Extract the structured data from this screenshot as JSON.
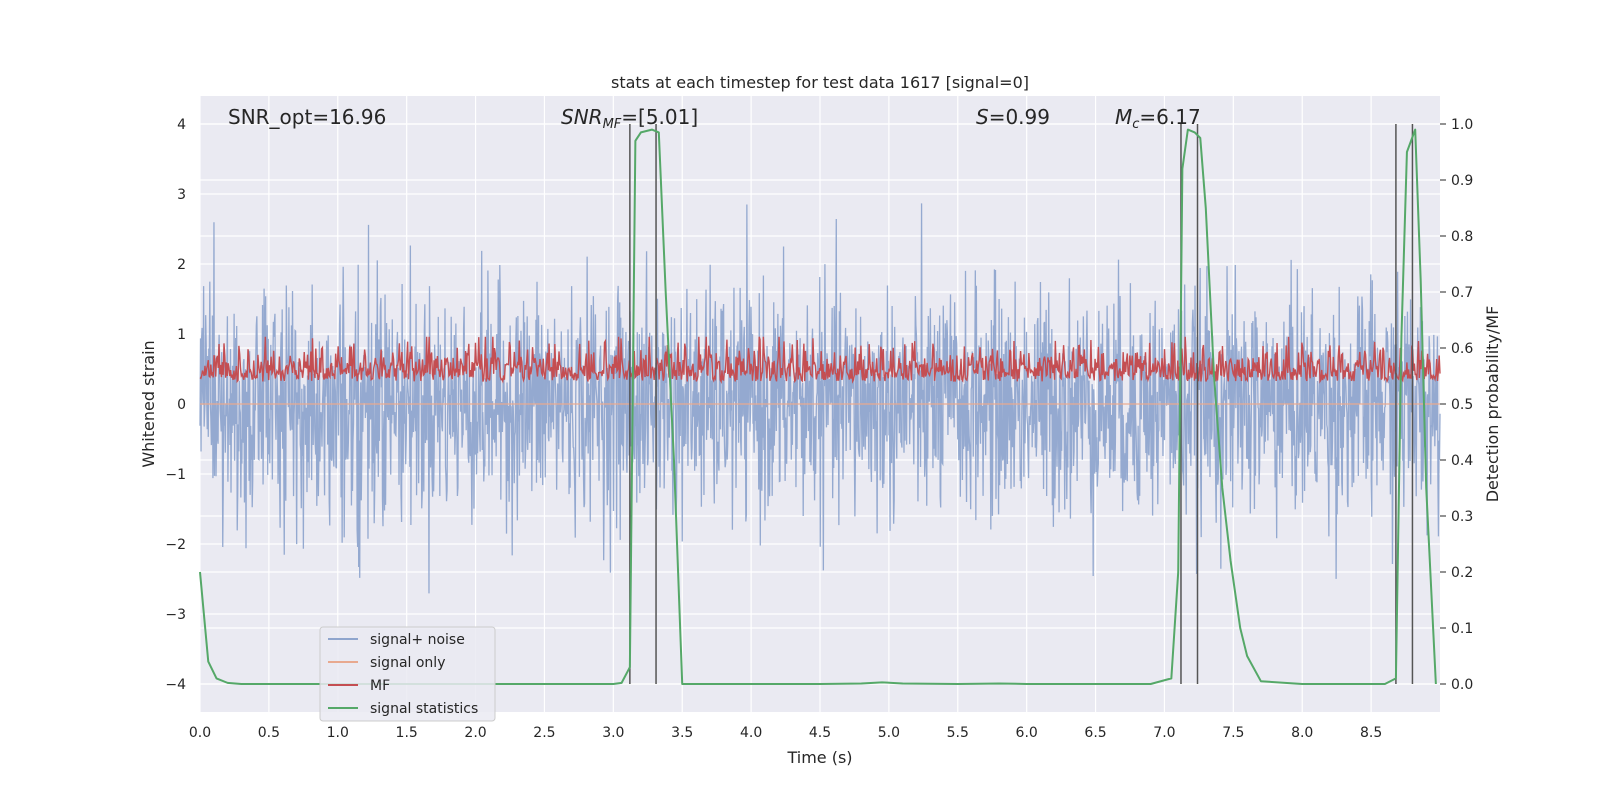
{
  "chart_data": {
    "type": "line",
    "title": "stats at each timestep for test data 1617 [signal=0]",
    "xlabel": "Time (s)",
    "ylabel": "Whitened strain",
    "y2label": "Detection probability/MF",
    "xlim": [
      0.0,
      9.0
    ],
    "ylim": [
      -4.4,
      4.4
    ],
    "y2lim": [
      -0.05,
      1.05
    ],
    "x_ticks": [
      "0.0",
      "0.5",
      "1.0",
      "1.5",
      "2.0",
      "2.5",
      "3.0",
      "3.5",
      "4.0",
      "4.5",
      "5.0",
      "5.5",
      "6.0",
      "6.5",
      "7.0",
      "7.5",
      "8.0",
      "8.5"
    ],
    "y_ticks": [
      "4",
      "3",
      "2",
      "1",
      "0",
      "−1",
      "−2",
      "−3",
      "−4"
    ],
    "y2_ticks": [
      "1.0",
      "0.9",
      "0.8",
      "0.7",
      "0.6",
      "0.5",
      "0.4",
      "0.3",
      "0.2",
      "0.1",
      "0.0"
    ],
    "grid": true,
    "legend_position": "lower-left",
    "annotations": [
      {
        "text": "SNR_opt=16.96"
      },
      {
        "base": "SNR",
        "sub": "MF",
        "rest": "=[5.01]"
      },
      {
        "base": "S",
        "rest": "=0.99"
      },
      {
        "base": "M",
        "sub": "c",
        "rest": "=6.17"
      }
    ],
    "series": [
      {
        "name": "signal+ noise",
        "color": "#8fa5cd",
        "noise_sigma": 0.8,
        "x_range": [
          0.0,
          9.0
        ],
        "axis": "left"
      },
      {
        "name": "signal only",
        "color": "#e8a98f",
        "x": [
          0.0,
          9.0
        ],
        "y": [
          0.0,
          0.0
        ],
        "axis": "left"
      },
      {
        "name": "MF",
        "color": "#c44e52",
        "baseline": 0.55,
        "axis": "right"
      },
      {
        "name": "signal statistics",
        "color": "#55a868",
        "axis": "right",
        "x": [
          0.0,
          0.03,
          0.06,
          0.12,
          0.2,
          0.3,
          0.5,
          1.0,
          1.5,
          2.0,
          2.5,
          3.0,
          3.06,
          3.12,
          3.16,
          3.2,
          3.28,
          3.33,
          3.38,
          3.44,
          3.5,
          3.6,
          4.0,
          4.5,
          4.8,
          4.95,
          5.1,
          5.5,
          5.8,
          6.0,
          6.5,
          6.9,
          7.05,
          7.1,
          7.13,
          7.17,
          7.22,
          7.26,
          7.3,
          7.36,
          7.42,
          7.48,
          7.55,
          7.6,
          7.7,
          8.0,
          8.4,
          8.6,
          8.68,
          8.72,
          8.76,
          8.82,
          8.86,
          8.9,
          8.95,
          8.97
        ],
        "y": [
          0.2,
          0.12,
          0.04,
          0.01,
          0.002,
          0.0,
          0.0,
          0.0,
          0.0,
          0.0,
          0.0,
          0.0,
          0.002,
          0.03,
          0.97,
          0.985,
          0.99,
          0.985,
          0.7,
          0.4,
          0.0,
          0.0,
          0.0,
          0.0,
          0.001,
          0.003,
          0.001,
          0.0,
          0.001,
          0.0,
          0.0,
          0.0,
          0.01,
          0.2,
          0.92,
          0.99,
          0.985,
          0.975,
          0.85,
          0.55,
          0.35,
          0.22,
          0.1,
          0.05,
          0.005,
          0.0,
          0.0,
          0.0,
          0.01,
          0.62,
          0.95,
          0.99,
          0.72,
          0.35,
          0.1,
          0.0
        ]
      },
      {
        "name": "detection markers",
        "color": "#555555",
        "x": [
          3.12,
          3.31,
          7.12,
          7.24,
          8.68,
          8.8
        ],
        "axis": "right"
      }
    ]
  }
}
